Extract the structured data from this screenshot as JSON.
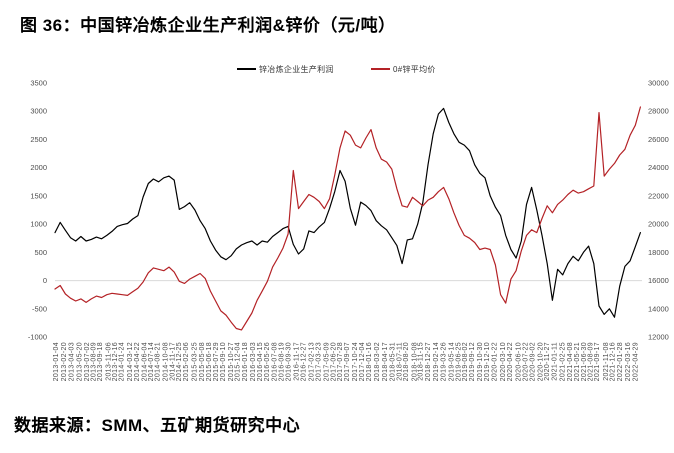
{
  "title": "图 36：中国锌冶炼企业生产利润&锌价（元/吨）",
  "source_note": "数据来源：SMM、五矿期货研究中心",
  "colors": {
    "profit_line": "#000000",
    "price_line": "#b42226",
    "gridline": "#d9d9d9",
    "axis_text": "#4d4d4d"
  },
  "chart_data": {
    "type": "line",
    "title": "图 36：中国锌冶炼企业生产利润&锌价（元/吨）",
    "legend_position": "top",
    "grid": "single horizontal gridline at left-axis 0 / right-axis 16000",
    "x_months": {
      "start": "2013-01",
      "end": "2022-06",
      "count": 114
    },
    "x_tick_labels": [
      "2013-01-04",
      "2013-02-20",
      "2013-04-03",
      "2013-05-20",
      "2013-07-02",
      "2013-08-09",
      "2013-09-18",
      "2013-11-06",
      "2013-12-16",
      "2014-01-24",
      "2014-03-12",
      "2014-04-22",
      "2014-06-04",
      "2014-07-14",
      "2014-08-21",
      "2014-10-08",
      "2014-11-17",
      "2014-12-25",
      "2015-02-06",
      "2015-03-25",
      "2015-05-08",
      "2015-06-18",
      "2015-07-29",
      "2015-09-10",
      "2015-10-27",
      "2015-12-04",
      "2016-01-18",
      "2016-03-03",
      "2016-04-15",
      "2016-05-26",
      "2016-07-08",
      "2016-08-19",
      "2016-09-30",
      "2016-11-17",
      "2016-12-27",
      "2017-02-13",
      "2017-03-23",
      "2017-05-09",
      "2017-06-20",
      "2017-07-28",
      "2017-09-07",
      "2017-10-24",
      "2017-12-04",
      "2018-01-16",
      "2018-03-02",
      "2018-04-17",
      "2018-05-31",
      "2018-07-11",
      "2018-08-20",
      "2018-10-08",
      "2018-11-15",
      "2018-12-27",
      "2019-02-14",
      "2019-03-26",
      "2019-05-14",
      "2019-06-25",
      "2019-08-02",
      "2019-09-12",
      "2019-10-30",
      "2019-12-10",
      "2020-01-22",
      "2020-03-10",
      "2020-04-22",
      "2020-06-10",
      "2020-07-22",
      "2020-09-02",
      "2020-10-20",
      "2020-11-27",
      "2021-01-11",
      "2021-02-25",
      "2021-04-08",
      "2021-05-21",
      "2021-06-30",
      "2021-08-09",
      "2021-09-17",
      "2021-11-08",
      "2021-12-16",
      "2022-01-28",
      "2022-03-16",
      "2022-04-29"
    ],
    "left_axis": {
      "min": -1000,
      "max": 3500,
      "step": 500,
      "ticks": [
        3500,
        3000,
        2500,
        2000,
        1500,
        1000,
        500,
        0,
        -500,
        -1000
      ]
    },
    "right_axis": {
      "min": 12000,
      "max": 30000,
      "step": 2000,
      "ticks": [
        30000,
        28000,
        26000,
        24000,
        22000,
        20000,
        18000,
        16000,
        14000,
        12000
      ]
    },
    "series": [
      {
        "name": "锌冶炼企业生产利润",
        "axis": "left",
        "color": "#000000",
        "monthly_values": [
          850,
          1030,
          890,
          760,
          700,
          780,
          700,
          730,
          770,
          740,
          800,
          870,
          960,
          990,
          1010,
          1090,
          1150,
          1480,
          1720,
          1800,
          1750,
          1820,
          1850,
          1780,
          1260,
          1310,
          1380,
          1250,
          1060,
          920,
          700,
          540,
          420,
          370,
          440,
          560,
          630,
          670,
          700,
          630,
          700,
          680,
          780,
          850,
          920,
          960,
          640,
          470,
          560,
          880,
          850,
          950,
          1030,
          1280,
          1580,
          1950,
          1760,
          1280,
          980,
          1390,
          1330,
          1240,
          1060,
          970,
          900,
          760,
          620,
          300,
          720,
          740,
          1000,
          1380,
          2050,
          2600,
          2950,
          3050,
          2800,
          2600,
          2450,
          2400,
          2300,
          2050,
          1900,
          1820,
          1500,
          1300,
          1150,
          800,
          550,
          400,
          700,
          1350,
          1650,
          1250,
          800,
          300,
          -350,
          200,
          100,
          300,
          430,
          350,
          500,
          610,
          300,
          -450,
          -600,
          -500,
          -650,
          -100,
          250,
          350,
          600,
          850
        ]
      },
      {
        "name": "0#锌平均价",
        "axis": "right",
        "color": "#b42226",
        "monthly_values": [
          15400,
          15650,
          15050,
          14750,
          14550,
          14700,
          14450,
          14700,
          14900,
          14800,
          15000,
          15100,
          15050,
          15000,
          14950,
          15200,
          15450,
          15900,
          16550,
          16900,
          16800,
          16700,
          16950,
          16600,
          15950,
          15800,
          16100,
          16300,
          16500,
          16150,
          15250,
          14550,
          13850,
          13550,
          13050,
          12600,
          12500,
          13100,
          13700,
          14600,
          15250,
          15950,
          16950,
          17600,
          18300,
          19300,
          23800,
          21100,
          21600,
          22100,
          21900,
          21600,
          21100,
          21800,
          23500,
          25400,
          26600,
          26300,
          25600,
          25400,
          26100,
          26700,
          25400,
          24600,
          24400,
          23900,
          22500,
          21300,
          21200,
          21900,
          21600,
          21300,
          21700,
          21900,
          22300,
          22600,
          21800,
          20800,
          19900,
          19200,
          19000,
          18700,
          18200,
          18300,
          18200,
          17100,
          15000,
          14400,
          16100,
          16700,
          18100,
          19200,
          19600,
          19400,
          20400,
          21300,
          20800,
          21400,
          21700,
          22100,
          22400,
          22200,
          22300,
          22500,
          22700,
          27900,
          23400,
          23900,
          24300,
          24900,
          25300,
          26300,
          27000,
          28300
        ]
      }
    ]
  }
}
